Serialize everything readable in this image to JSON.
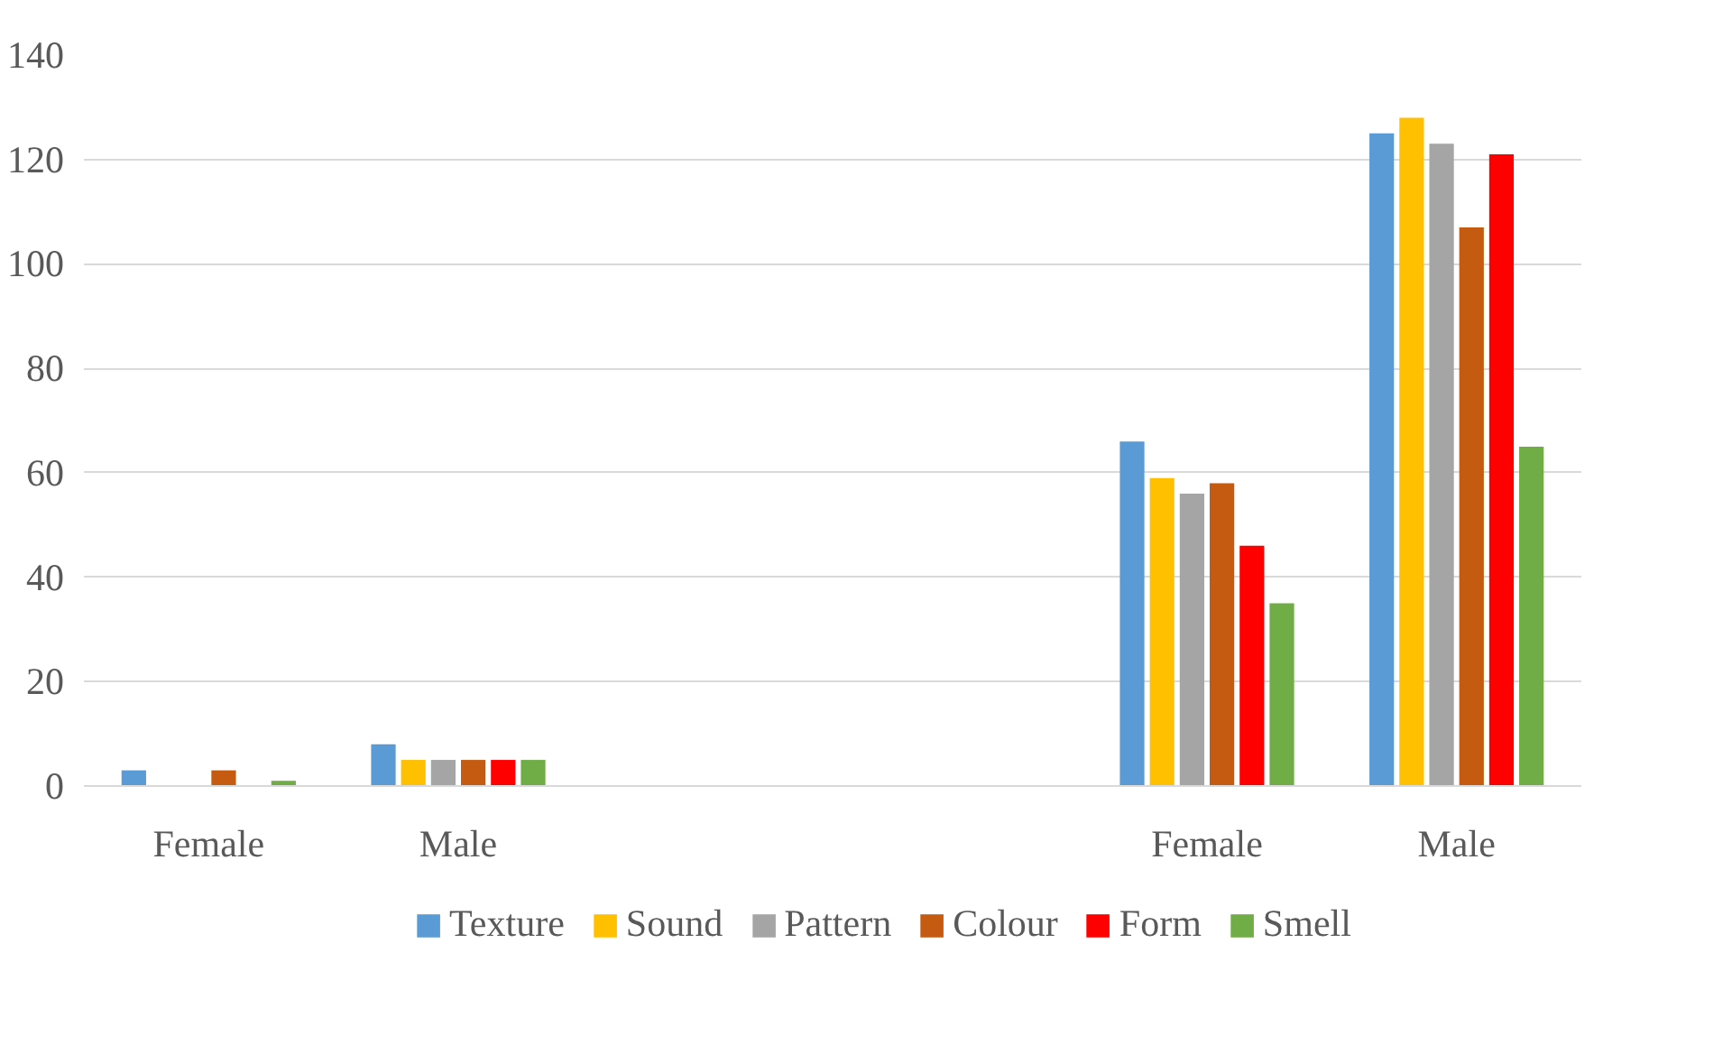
{
  "chart_data": {
    "type": "bar",
    "categories": [
      "Female",
      "Male",
      null,
      null,
      "Female",
      "Male"
    ],
    "series": [
      {
        "name": "Texture",
        "color": "#5b9bd5",
        "values": [
          3,
          8,
          null,
          null,
          66,
          125
        ]
      },
      {
        "name": "Sound",
        "color": "#ffc000",
        "values": [
          0,
          5,
          null,
          null,
          59,
          128
        ]
      },
      {
        "name": "Pattern",
        "color": "#a5a5a5",
        "values": [
          0,
          5,
          null,
          null,
          56,
          123
        ]
      },
      {
        "name": "Colour",
        "color": "#c55a11",
        "values": [
          3,
          5,
          null,
          null,
          58,
          107
        ]
      },
      {
        "name": "Form",
        "color": "#ff0000",
        "values": [
          0,
          5,
          null,
          null,
          46,
          121
        ]
      },
      {
        "name": "Smell",
        "color": "#70ad47",
        "values": [
          1,
          5,
          null,
          null,
          35,
          65
        ]
      }
    ],
    "ylim": [
      0,
      140
    ],
    "yticks": [
      0,
      20,
      40,
      60,
      80,
      100,
      120,
      140
    ],
    "grid": "y",
    "legend": "bottom"
  }
}
